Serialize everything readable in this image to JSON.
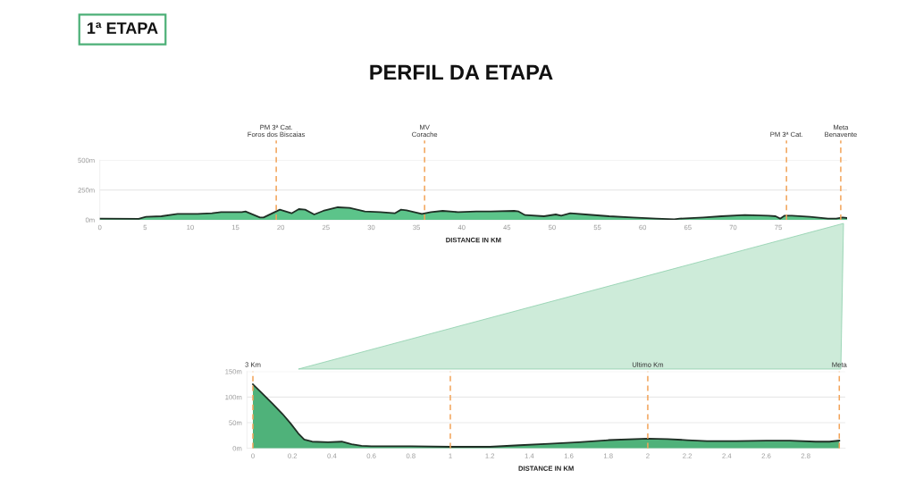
{
  "chart_data": [
    {
      "type": "area",
      "title": "PERFIL DA ETAPA",
      "annotations": [
        "1ª ETAPA"
      ],
      "xlabel": "DISTANCE IN KM",
      "color": "#5cc48a",
      "x": [
        0,
        4.3,
        5.1,
        6.8,
        8.6,
        10.8,
        12.4,
        13.4,
        15.7,
        16.1,
        17.7,
        18.1,
        19.9,
        21.2,
        22.0,
        22.7,
        23.7,
        24.7,
        26.3,
        27.6,
        29.3,
        31.0,
        32.6,
        33.3,
        33.9,
        35.6,
        36.6,
        37.9,
        39.6,
        41.6,
        43.2,
        45.8,
        46.3,
        47.0,
        49.1,
        50.4,
        51.0,
        52.0,
        53.7,
        56.3,
        58.9,
        61.5,
        63.5,
        64.1,
        66.7,
        68.7,
        71.3,
        73.9,
        74.7,
        75.2,
        75.7,
        76.5,
        78.5,
        80.5,
        81.4,
        82.1,
        82.6
      ],
      "values": [
        10,
        8,
        25,
        30,
        50,
        50,
        55,
        65,
        65,
        70,
        20,
        20,
        85,
        55,
        90,
        85,
        45,
        75,
        105,
        100,
        70,
        65,
        55,
        85,
        80,
        50,
        65,
        75,
        65,
        70,
        70,
        75,
        70,
        40,
        30,
        45,
        35,
        55,
        45,
        30,
        20,
        10,
        5,
        10,
        20,
        30,
        40,
        35,
        30,
        10,
        35,
        35,
        25,
        10,
        10,
        20,
        15
      ],
      "xlim": [
        0,
        82.6
      ],
      "ylim": [
        0,
        500
      ],
      "xticks": [
        0,
        5,
        10,
        15,
        20,
        25,
        30,
        35,
        40,
        45,
        50,
        55,
        60,
        65,
        70,
        75
      ],
      "yticks": [
        {
          "value": 0,
          "label": "0m"
        },
        {
          "value": 250,
          "label": "250m"
        },
        {
          "value": 500,
          "label": "500m"
        }
      ],
      "grid": "y",
      "ref_lines": [
        {
          "axis": "x",
          "value": 19.5,
          "label": "PM 3ª Cat.\nForos dos Biscaias",
          "color": "#f2a45a",
          "line_style": "dashed"
        },
        {
          "axis": "x",
          "value": 35.9,
          "label": "MV\nCorache",
          "color": "#f2a45a",
          "line_style": "dashed"
        },
        {
          "axis": "x",
          "value": 75.9,
          "label": "PM 3ª Cat.",
          "color": "#f2a45a",
          "line_style": "dashed"
        },
        {
          "axis": "x",
          "value": 81.9,
          "label": "Meta\nBenavente",
          "color": "#f2a45a",
          "line_style": "dashed"
        }
      ]
    },
    {
      "type": "area",
      "xlabel": "DISTANCE IN KM",
      "color": "#4fb27a",
      "x": [
        0,
        0.05,
        0.1,
        0.15,
        0.19,
        0.23,
        0.26,
        0.3,
        0.38,
        0.45,
        0.5,
        0.55,
        0.6,
        0.8,
        1.0,
        1.2,
        1.35,
        1.5,
        1.65,
        1.8,
        2.0,
        2.1,
        2.2,
        2.3,
        2.45,
        2.6,
        2.72,
        2.85,
        2.92,
        2.97
      ],
      "values": [
        125,
        106,
        87,
        67,
        49,
        29,
        17,
        13,
        12,
        13,
        8,
        5,
        4,
        4,
        3,
        3,
        6,
        9,
        12,
        16,
        19,
        18,
        16,
        14,
        14,
        15,
        15,
        13,
        13,
        15
      ],
      "xlim": [
        -0.03,
        3.0
      ],
      "ylim": [
        0,
        150
      ],
      "xticks": [
        0,
        0.2,
        0.4,
        0.6,
        0.8,
        1,
        1.2,
        1.4,
        1.6,
        1.8,
        2,
        2.2,
        2.4,
        2.6,
        2.8
      ],
      "yticks": [
        {
          "value": 0,
          "label": "0m"
        },
        {
          "value": 50,
          "label": "50m"
        },
        {
          "value": 100,
          "label": "100m"
        },
        {
          "value": 150,
          "label": "150m"
        }
      ],
      "grid": "y",
      "ref_lines": [
        {
          "axis": "x",
          "value": 0,
          "label": "3 Km",
          "color": "#f2a45a",
          "line_style": "dashed"
        },
        {
          "axis": "x",
          "value": 1,
          "label": null,
          "color": "#f2a45a",
          "line_style": "dashed"
        },
        {
          "axis": "x",
          "value": 2,
          "label": "Ultimo Km",
          "color": "#f2a45a",
          "line_style": "dashed"
        },
        {
          "axis": "x",
          "value": 2.97,
          "label": "Meta",
          "color": "#f2a45a",
          "line_style": "dashed"
        }
      ]
    }
  ]
}
